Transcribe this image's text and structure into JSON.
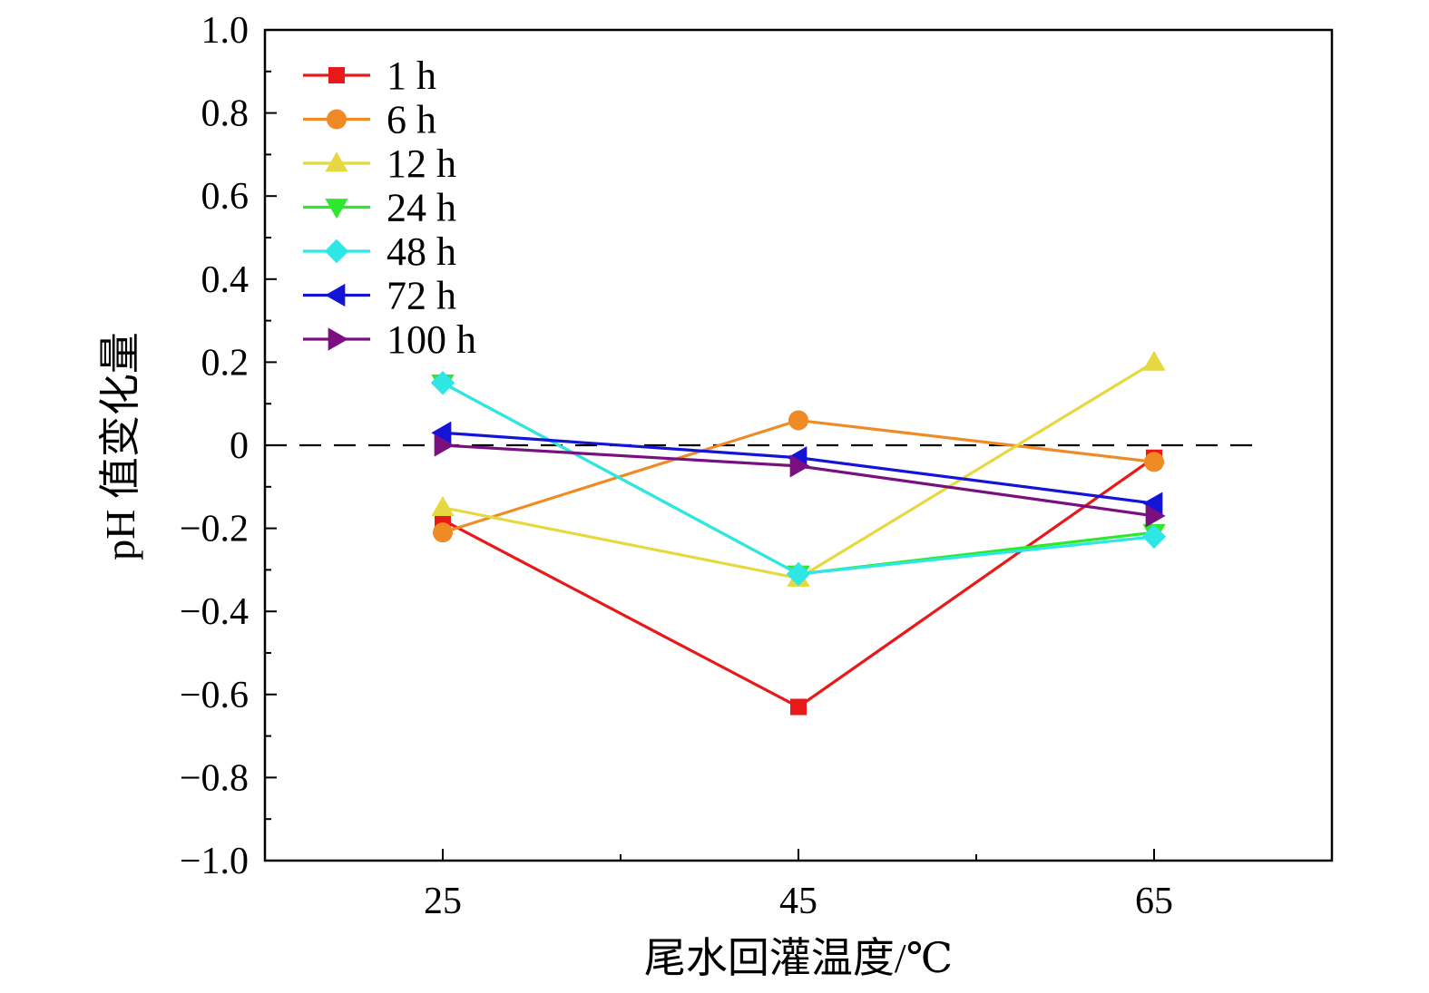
{
  "chart_data": {
    "type": "line",
    "xlabel": "尾水回灌温度/℃",
    "ylabel": "pH 值变化量",
    "x": [
      25,
      45,
      65
    ],
    "x_tick_labels": [
      "25",
      "45",
      "65"
    ],
    "xlim": [
      15,
      75
    ],
    "ylim": [
      -1.0,
      1.0
    ],
    "y_ticks": [
      1.0,
      0.8,
      0.6,
      0.4,
      0.2,
      0,
      -0.2,
      -0.4,
      -0.6,
      -0.8,
      -1.0
    ],
    "y_tick_labels": [
      "1.0",
      "0.8",
      "0.6",
      "0.4",
      "0.2",
      "0",
      "−0.2",
      "−0.4",
      "−0.6",
      "−0.8",
      "−1.0"
    ],
    "reference_line": {
      "y": 0,
      "style": "dashed"
    },
    "grid": false,
    "legend_position": "top-left",
    "series": [
      {
        "name": "1 h",
        "values": [
          -0.18,
          -0.63,
          -0.03
        ],
        "color": "#e8191a",
        "marker": "square"
      },
      {
        "name": "6 h",
        "values": [
          -0.21,
          0.06,
          -0.04
        ],
        "color": "#f08a24",
        "marker": "circle"
      },
      {
        "name": "12 h",
        "values": [
          -0.15,
          -0.32,
          0.2
        ],
        "color": "#e6d840",
        "marker": "triangle-up"
      },
      {
        "name": "24 h",
        "values": [
          0.15,
          -0.31,
          -0.21
        ],
        "color": "#2ee82e",
        "marker": "triangle-down"
      },
      {
        "name": "48 h",
        "values": [
          0.15,
          -0.31,
          -0.22
        ],
        "color": "#2ee6e6",
        "marker": "diamond"
      },
      {
        "name": "72 h",
        "values": [
          0.03,
          -0.03,
          -0.14
        ],
        "color": "#1414d6",
        "marker": "triangle-left"
      },
      {
        "name": "100 h",
        "values": [
          0.0,
          -0.05,
          -0.17
        ],
        "color": "#7a1080",
        "marker": "triangle-right"
      }
    ]
  }
}
